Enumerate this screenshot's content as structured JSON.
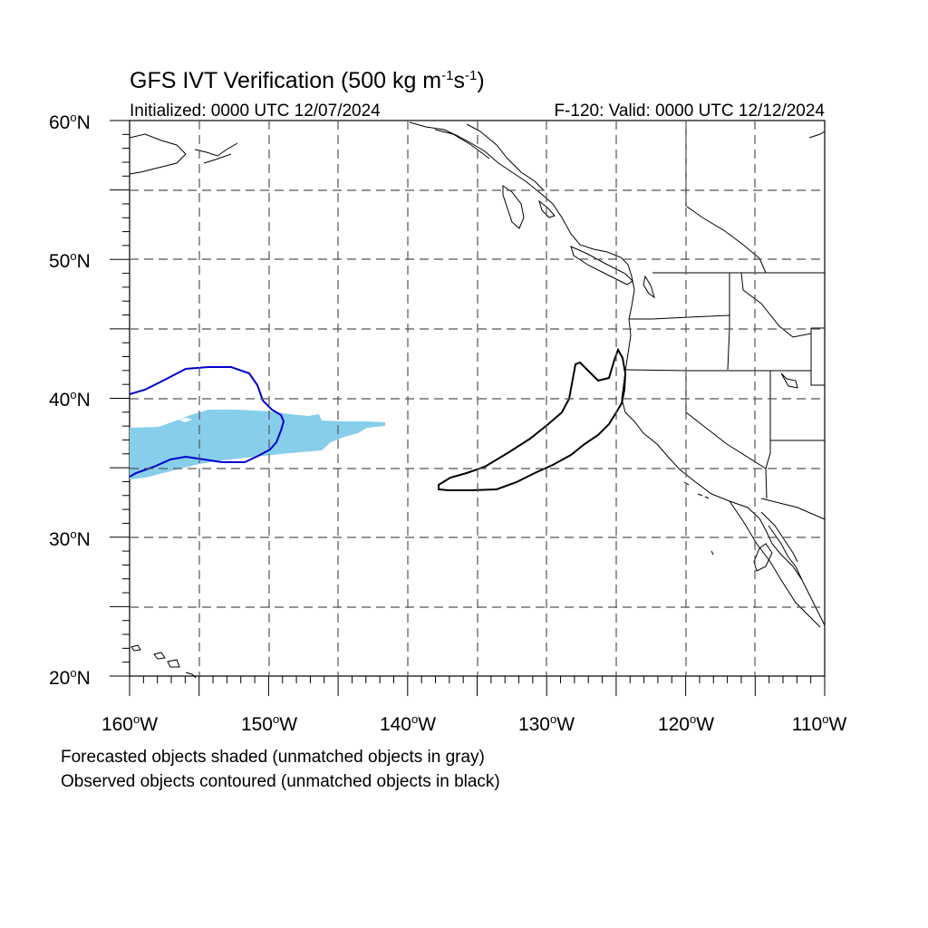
{
  "title": {
    "main": "GFS IVT Verification (500 kg m",
    "exp1": "-1",
    "mid": "s",
    "exp2": "-1",
    "close": ")"
  },
  "subtitle": {
    "initialized": "Initialized: 0000 UTC 12/07/2024",
    "valid": "F-120: Valid: 0000 UTC 12/12/2024"
  },
  "axes": {
    "lat_labels": [
      "60",
      "50",
      "40",
      "30",
      "20"
    ],
    "lat_suffix": "N",
    "lon_labels": [
      "160",
      "150",
      "140",
      "130",
      "120",
      "110"
    ],
    "lon_suffix": "W",
    "degree_symbol": "o",
    "lat_range": [
      20,
      60
    ],
    "lon_range": [
      -160,
      -110
    ],
    "grid_step_deg": 5,
    "grid_style": "dashed"
  },
  "captions": [
    "Forecasted objects shaded (unmatched objects in gray)",
    "Observed objects contoured (unmatched objects in black)"
  ],
  "colors": {
    "forecast_fill": "#87CEEB",
    "matched_contour": "#0000CC",
    "unmatched_contour": "#000000",
    "coastline": "#000000",
    "grid": "#555555"
  }
}
